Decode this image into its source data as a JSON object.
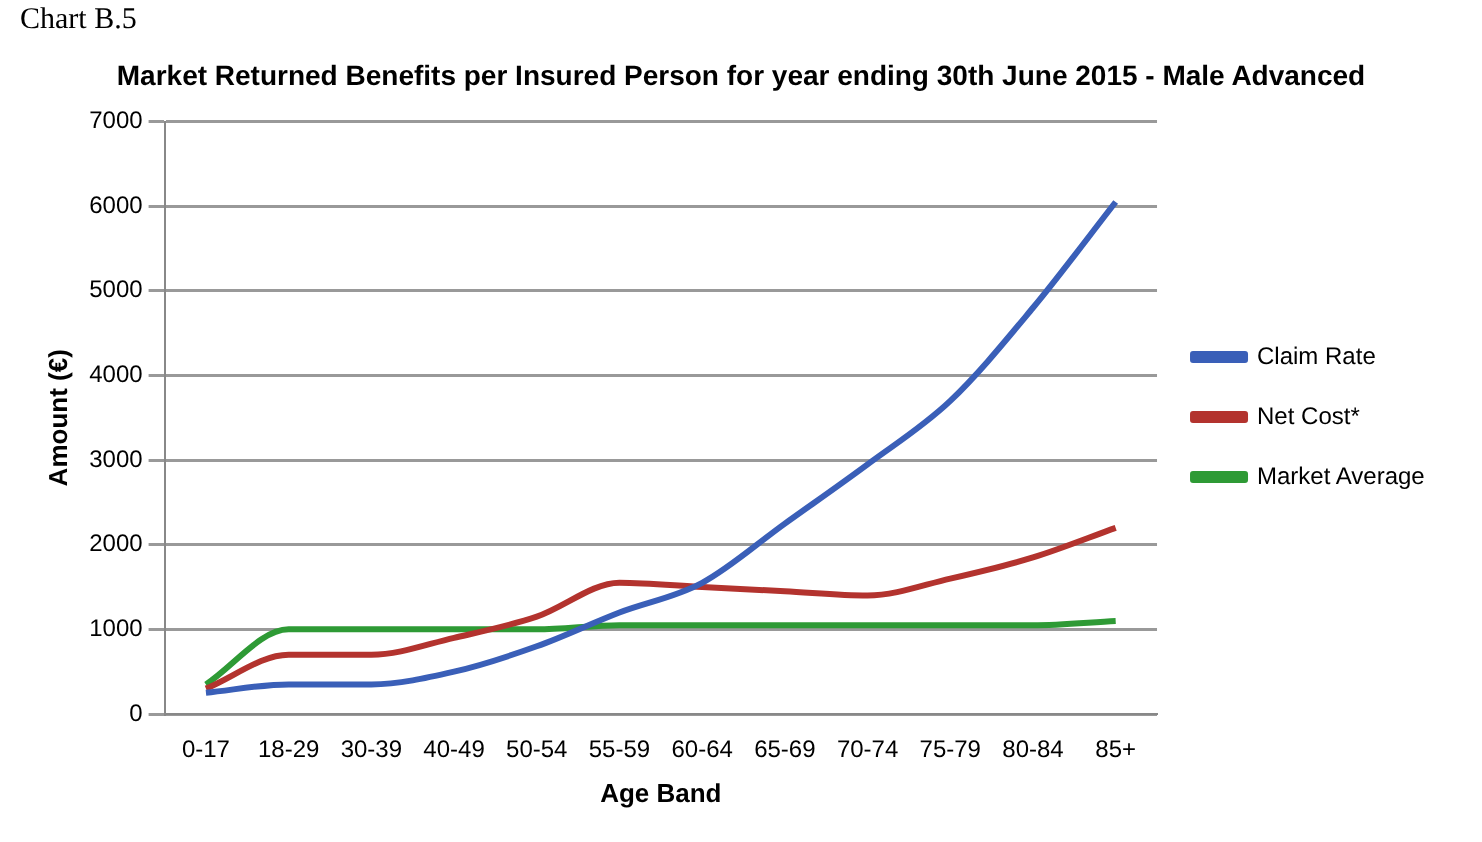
{
  "chart_data": {
    "type": "line",
    "title": "Market Returned Benefits per Insured Person for year ending 30th June 2015 - Male Advanced",
    "xlabel": "Age Band",
    "ylabel": "Amount (€)",
    "annotations": [
      "Chart B.5"
    ],
    "categories": [
      "0-17",
      "18-29",
      "30-39",
      "40-49",
      "50-54",
      "55-59",
      "60-64",
      "65-69",
      "70-74",
      "75-79",
      "80-84",
      "85+"
    ],
    "series": [
      {
        "name": "Claim Rate",
        "color": "#3a5fb8",
        "values": [
          250,
          350,
          350,
          500,
          800,
          1200,
          1550,
          2250,
          2950,
          3700,
          4800,
          6050
        ]
      },
      {
        "name": "Net Cost*",
        "color": "#b3332e",
        "values": [
          300,
          700,
          700,
          900,
          1150,
          1550,
          1500,
          1450,
          1400,
          1600,
          1850,
          2200
        ]
      },
      {
        "name": "Market Average",
        "color": "#2e9a35",
        "values": [
          350,
          1000,
          1000,
          1000,
          1000,
          1050,
          1050,
          1050,
          1050,
          1050,
          1050,
          1100
        ]
      }
    ],
    "ylim": [
      0,
      7000
    ],
    "yticks": [
      0,
      1000,
      2000,
      3000,
      4000,
      5000,
      6000,
      7000
    ],
    "grid": "y",
    "legend": "right",
    "marker": "none",
    "line_style": "solid"
  }
}
